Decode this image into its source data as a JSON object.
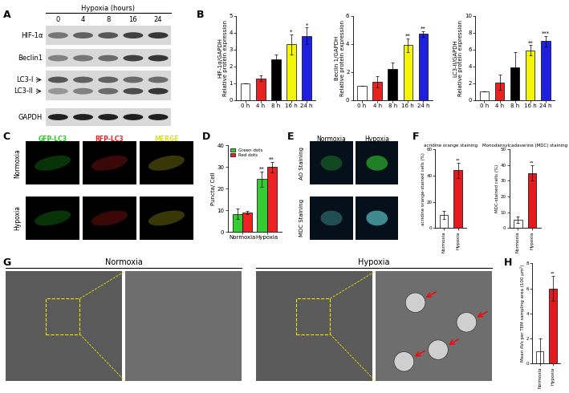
{
  "panel_letters": [
    "A",
    "B",
    "C",
    "D",
    "E",
    "F",
    "G",
    "H"
  ],
  "blot": {
    "title": "Hypoxia (hours)",
    "lanes": [
      "0",
      "4",
      "8",
      "16",
      "24"
    ],
    "rows": [
      "HIF-1α",
      "Beclin1",
      "LC3-I",
      "LC3-II",
      "GAPDH"
    ]
  },
  "fluorescence": {
    "rows": [
      "Normoxia",
      "Hypoxia"
    ],
    "columns": [
      "GFP-LC3",
      "RFP-LC3",
      "MERGE"
    ]
  },
  "staining": {
    "columns": [
      "Normoxia",
      "Hypoxia"
    ],
    "rows": [
      "AO Staining",
      "MDC Staining"
    ]
  },
  "tem": {
    "panels": [
      "Normoxia",
      "Hypoxia"
    ]
  },
  "chart_data": [
    {
      "type": "bar",
      "ylabel": "HIF-1α/GAPDH\nRelative protein expression",
      "categories": [
        "0 h",
        "4 h",
        "8 h",
        "16 h",
        "24 h"
      ],
      "values": [
        1,
        1.3,
        2.4,
        3.3,
        3.8
      ],
      "errors": [
        0,
        0.15,
        0.3,
        0.6,
        0.5
      ],
      "colors": [
        "#ffffff",
        "#e8221f",
        "#000000",
        "#f5f50a",
        "#1f1fe0"
      ],
      "annotations": [
        null,
        null,
        null,
        "*",
        "*"
      ],
      "ylim": [
        0,
        5
      ],
      "yticks": [
        0,
        1,
        2,
        3,
        4,
        5
      ]
    },
    {
      "type": "bar",
      "ylabel": "Beclin 1/GAPDH\nRelative protein expression",
      "categories": [
        "0 h",
        "4 h",
        "8 h",
        "16 h",
        "24 h"
      ],
      "values": [
        1,
        1.3,
        2.2,
        3.9,
        4.7
      ],
      "errors": [
        0,
        0.4,
        0.5,
        0.5,
        0.2
      ],
      "colors": [
        "#ffffff",
        "#e8221f",
        "#000000",
        "#f5f50a",
        "#1f1fe0"
      ],
      "annotations": [
        null,
        null,
        null,
        "**",
        "**"
      ],
      "ylim": [
        0,
        6
      ],
      "yticks": [
        0,
        2,
        4,
        6
      ]
    },
    {
      "type": "bar",
      "ylabel": "LC3-II/GAPDH\nRelative protein expression",
      "categories": [
        "0 h",
        "4 h",
        "8 h",
        "16 h",
        "24 h"
      ],
      "values": [
        1,
        2.1,
        3.9,
        5.9,
        7.0
      ],
      "errors": [
        0,
        0.9,
        1.8,
        0.6,
        0.6
      ],
      "colors": [
        "#ffffff",
        "#e8221f",
        "#000000",
        "#f5f50a",
        "#1f1fe0"
      ],
      "annotations": [
        null,
        null,
        null,
        "**",
        "***"
      ],
      "ylim": [
        0,
        10
      ],
      "yticks": [
        0,
        2,
        4,
        6,
        8,
        10
      ]
    },
    {
      "type": "bar",
      "ylabel": "Puncta/ Cell",
      "categories": [
        "Normoxia",
        "Hypoxia"
      ],
      "series": [
        {
          "name": "Green dots",
          "color": "#33cc33",
          "values": [
            8.3,
            24.5
          ],
          "errors": [
            2.5,
            3.5
          ],
          "annotations": [
            null,
            "**"
          ]
        },
        {
          "name": "Red dots",
          "color": "#ee2222",
          "values": [
            9,
            30
          ],
          "errors": [
            0.8,
            2.5
          ],
          "annotations": [
            null,
            "**"
          ]
        }
      ],
      "legend": "upper left",
      "ylim": [
        0,
        40
      ],
      "yticks": [
        0,
        10,
        20,
        30,
        40
      ]
    },
    {
      "type": "bar",
      "title": "acridine orange staining",
      "ylabel": "acridine orange-stained cells (%)",
      "categories": [
        "Normoxia",
        "Hypoxia"
      ],
      "values": [
        10,
        44
      ],
      "errors": [
        3,
        6
      ],
      "colors": [
        "#ffffff",
        "#e41a1c"
      ],
      "annotations": [
        null,
        "**"
      ],
      "ylim": [
        0,
        60
      ],
      "yticks": [
        0,
        20,
        40,
        60
      ]
    },
    {
      "type": "bar",
      "title": "Monodansylcadaverine (MDC) staining",
      "ylabel": "MDC-stained cells (%)",
      "categories": [
        "Normoxia",
        "Hypoxia"
      ],
      "values": [
        5,
        35
      ],
      "errors": [
        2,
        5
      ],
      "colors": [
        "#ffffff",
        "#e41a1c"
      ],
      "annotations": [
        null,
        "**"
      ],
      "ylim": [
        0,
        50
      ],
      "yticks": [
        0,
        10,
        20,
        30,
        40,
        50
      ]
    },
    {
      "type": "bar",
      "ylabel": "Mean AVs per TEM sampling area (100 μm²)",
      "categories": [
        "Normoxia",
        "Hypoxia"
      ],
      "values": [
        1,
        6
      ],
      "errors": [
        1,
        1
      ],
      "colors": [
        "#ffffff",
        "#e41a1c"
      ],
      "annotations": [
        null,
        "**"
      ],
      "ylim": [
        0,
        8
      ],
      "yticks": [
        0,
        2,
        4,
        6,
        8
      ]
    }
  ]
}
